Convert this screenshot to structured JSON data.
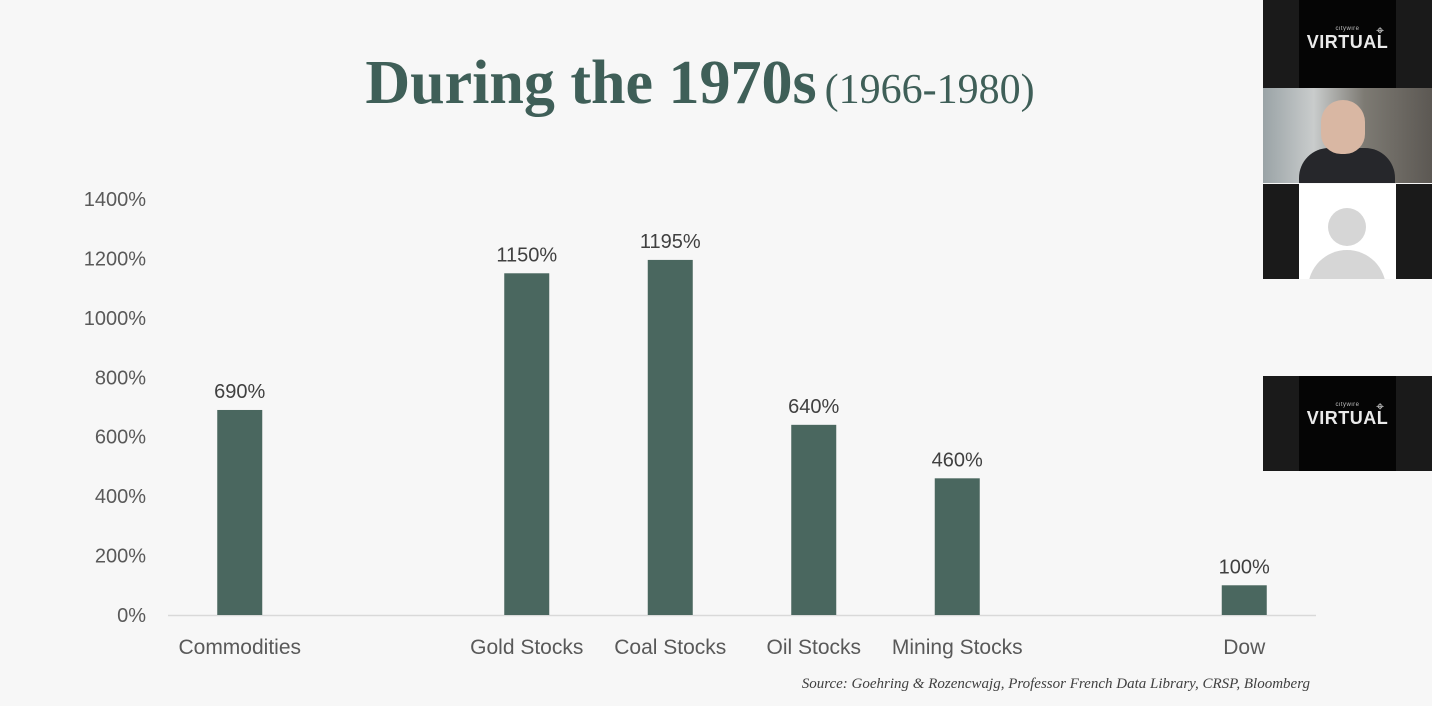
{
  "slide": {
    "title_main": "During the 1970s",
    "title_sub": "(1966-1980)",
    "source": "Source: Goehring & Rozencwajg, Professor French Data Library, CRSP, Bloomberg"
  },
  "chart_data": {
    "type": "bar",
    "title": "During the 1970s (1966-1980)",
    "xlabel": "",
    "ylabel": "",
    "categories": [
      "Commodities",
      "",
      "Gold Stocks",
      "Coal Stocks",
      "Oil Stocks",
      "Mining Stocks",
      "",
      "Dow"
    ],
    "values": [
      690,
      null,
      1150,
      1195,
      640,
      460,
      null,
      100
    ],
    "data_labels": [
      "690%",
      "",
      "1150%",
      "1195%",
      "640%",
      "460%",
      "",
      "100%"
    ],
    "ylim": [
      0,
      1400
    ],
    "yticks": [
      0,
      200,
      400,
      600,
      800,
      1000,
      1200,
      1400
    ],
    "ytick_labels": [
      "0%",
      "200%",
      "400%",
      "600%",
      "800%",
      "1000%",
      "1200%",
      "1400%"
    ],
    "grid": false,
    "legend": "none",
    "bar_color": "#4a675f"
  },
  "video_panel": {
    "tiles": [
      {
        "type": "logo",
        "logo_small": "citywire",
        "logo_text": "VIRTUAL"
      },
      {
        "type": "camera"
      },
      {
        "type": "avatar"
      },
      {
        "type": "logo",
        "logo_small": "citywire",
        "logo_text": "VIRTUAL"
      }
    ]
  }
}
